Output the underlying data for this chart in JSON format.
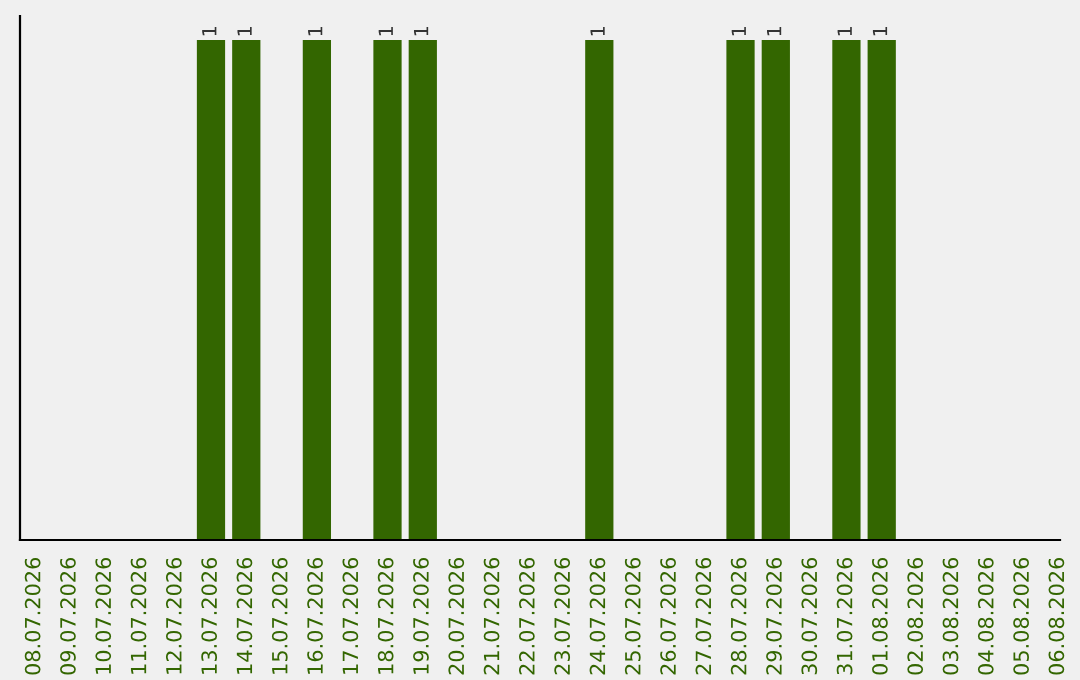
{
  "chart_data": {
    "type": "bar",
    "categories": [
      "08.07.2026",
      "09.07.2026",
      "10.07.2026",
      "11.07.2026",
      "12.07.2026",
      "13.07.2026",
      "14.07.2026",
      "15.07.2026",
      "16.07.2026",
      "17.07.2026",
      "18.07.2026",
      "19.07.2026",
      "20.07.2026",
      "21.07.2026",
      "22.07.2026",
      "23.07.2026",
      "24.07.2026",
      "25.07.2026",
      "26.07.2026",
      "27.07.2026",
      "28.07.2026",
      "29.07.2026",
      "30.07.2026",
      "31.07.2026",
      "01.08.2026",
      "02.08.2026",
      "03.08.2026",
      "04.08.2026",
      "05.08.2026",
      "06.08.2026"
    ],
    "values": [
      0,
      0,
      0,
      0,
      0,
      1,
      1,
      0,
      1,
      0,
      1,
      1,
      0,
      0,
      0,
      0,
      1,
      0,
      0,
      0,
      1,
      1,
      0,
      1,
      1,
      0,
      0,
      0,
      0,
      0
    ],
    "value_labels": [
      null,
      null,
      null,
      null,
      null,
      "1",
      "1",
      null,
      "1",
      null,
      "1",
      "1",
      null,
      null,
      null,
      null,
      "1",
      null,
      null,
      null,
      "1",
      "1",
      null,
      "1",
      "1",
      null,
      null,
      null,
      null,
      null
    ],
    "color": "#336600",
    "tick_labels": "x",
    "grid": false,
    "legend": false
  }
}
